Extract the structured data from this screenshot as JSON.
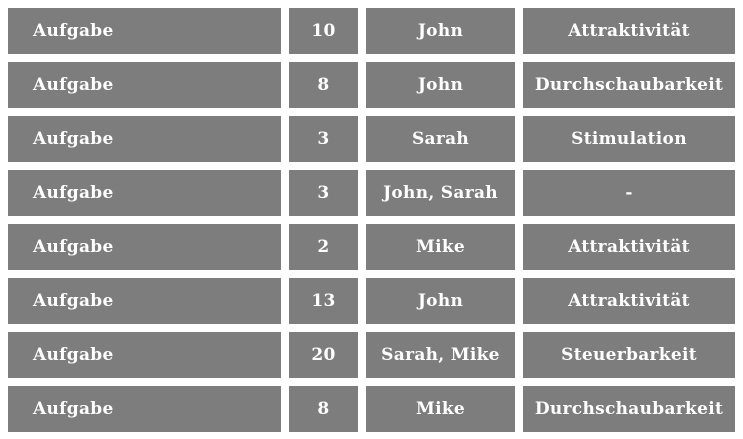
{
  "table": {
    "columns": [
      "task",
      "value",
      "names",
      "category"
    ],
    "rows": [
      {
        "task": "Aufgabe",
        "value": "10",
        "names": "John",
        "category": "Attraktivität"
      },
      {
        "task": "Aufgabe",
        "value": "8",
        "names": "John",
        "category": "Durchschaubarkeit"
      },
      {
        "task": "Aufgabe",
        "value": "3",
        "names": "Sarah",
        "category": "Stimulation"
      },
      {
        "task": "Aufgabe",
        "value": "3",
        "names": "John, Sarah",
        "category": "-"
      },
      {
        "task": "Aufgabe",
        "value": "2",
        "names": "Mike",
        "category": "Attraktivität"
      },
      {
        "task": "Aufgabe",
        "value": "13",
        "names": "John",
        "category": "Attraktivität"
      },
      {
        "task": "Aufgabe",
        "value": "20",
        "names": "Sarah, Mike",
        "category": "Steuerbarkeit"
      },
      {
        "task": "Aufgabe",
        "value": "8",
        "names": "Mike",
        "category": "Durchschaubarkeit"
      }
    ],
    "colors": {
      "cell_background": "#7d7d7d",
      "cell_text": "#ffffff",
      "page_background": "#ffffff"
    }
  }
}
